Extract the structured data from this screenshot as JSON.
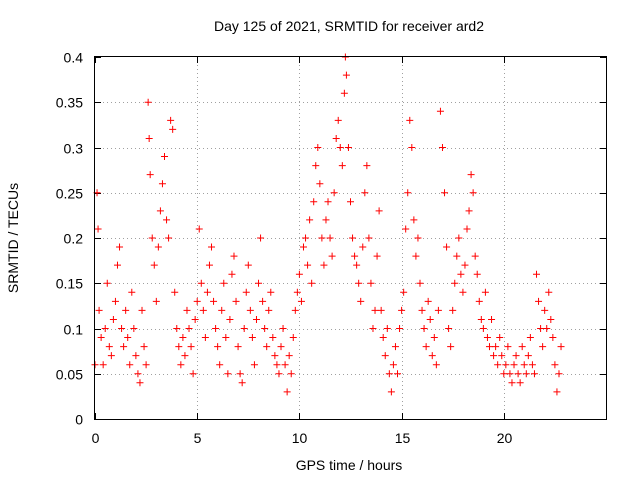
{
  "chart_data": {
    "type": "scatter",
    "title": "Day 125 of 2021, SRMTID for receiver ard2",
    "xlabel": "GPS time / hours",
    "ylabel": "SRMTID / TECUs",
    "xlim": [
      0,
      25
    ],
    "ylim": [
      0,
      0.4
    ],
    "xticks": [
      0,
      5,
      10,
      15,
      20
    ],
    "xtick_labels": [
      "0",
      "5",
      "10",
      "15",
      "20"
    ],
    "yticks": [
      0,
      0.05,
      0.1,
      0.15,
      0.2,
      0.25,
      0.3,
      0.35,
      0.4
    ],
    "ytick_labels": [
      "0",
      "0.05",
      "0.1",
      "0.15",
      "0.2",
      "0.25",
      "0.3",
      "0.35",
      "0.4"
    ],
    "grid": true,
    "marker": "+",
    "series": [
      {
        "name": "ard2",
        "color": "#ff0000",
        "points": [
          [
            0.0,
            0.06
          ],
          [
            0.1,
            0.25
          ],
          [
            0.15,
            0.21
          ],
          [
            0.2,
            0.12
          ],
          [
            0.3,
            0.09
          ],
          [
            0.4,
            0.06
          ],
          [
            0.5,
            0.1
          ],
          [
            0.6,
            0.15
          ],
          [
            0.7,
            0.08
          ],
          [
            0.8,
            0.07
          ],
          [
            0.9,
            0.11
          ],
          [
            1.0,
            0.13
          ],
          [
            1.1,
            0.17
          ],
          [
            1.2,
            0.19
          ],
          [
            1.3,
            0.1
          ],
          [
            1.4,
            0.08
          ],
          [
            1.5,
            0.12
          ],
          [
            1.6,
            0.09
          ],
          [
            1.7,
            0.06
          ],
          [
            1.8,
            0.14
          ],
          [
            1.9,
            0.1
          ],
          [
            2.0,
            0.07
          ],
          [
            2.1,
            0.05
          ],
          [
            2.2,
            0.04
          ],
          [
            2.3,
            0.12
          ],
          [
            2.4,
            0.08
          ],
          [
            2.5,
            0.06
          ],
          [
            2.6,
            0.35
          ],
          [
            2.65,
            0.31
          ],
          [
            2.7,
            0.27
          ],
          [
            2.8,
            0.2
          ],
          [
            2.9,
            0.17
          ],
          [
            3.0,
            0.13
          ],
          [
            3.1,
            0.19
          ],
          [
            3.2,
            0.23
          ],
          [
            3.3,
            0.26
          ],
          [
            3.4,
            0.29
          ],
          [
            3.5,
            0.22
          ],
          [
            3.6,
            0.2
          ],
          [
            3.7,
            0.33
          ],
          [
            3.8,
            0.32
          ],
          [
            3.9,
            0.14
          ],
          [
            4.0,
            0.1
          ],
          [
            4.1,
            0.08
          ],
          [
            4.2,
            0.06
          ],
          [
            4.3,
            0.09
          ],
          [
            4.4,
            0.07
          ],
          [
            4.5,
            0.12
          ],
          [
            4.6,
            0.1
          ],
          [
            4.7,
            0.08
          ],
          [
            4.8,
            0.05
          ],
          [
            4.9,
            0.11
          ],
          [
            5.0,
            0.13
          ],
          [
            5.1,
            0.21
          ],
          [
            5.2,
            0.15
          ],
          [
            5.3,
            0.12
          ],
          [
            5.4,
            0.09
          ],
          [
            5.5,
            0.14
          ],
          [
            5.6,
            0.17
          ],
          [
            5.7,
            0.19
          ],
          [
            5.8,
            0.13
          ],
          [
            5.9,
            0.1
          ],
          [
            6.0,
            0.08
          ],
          [
            6.1,
            0.06
          ],
          [
            6.2,
            0.12
          ],
          [
            6.3,
            0.15
          ],
          [
            6.4,
            0.09
          ],
          [
            6.5,
            0.05
          ],
          [
            6.6,
            0.11
          ],
          [
            6.7,
            0.16
          ],
          [
            6.8,
            0.18
          ],
          [
            6.9,
            0.13
          ],
          [
            7.0,
            0.08
          ],
          [
            7.1,
            0.05
          ],
          [
            7.2,
            0.04
          ],
          [
            7.3,
            0.1
          ],
          [
            7.4,
            0.14
          ],
          [
            7.5,
            0.17
          ],
          [
            7.6,
            0.12
          ],
          [
            7.7,
            0.09
          ],
          [
            7.8,
            0.06
          ],
          [
            7.9,
            0.11
          ],
          [
            8.0,
            0.15
          ],
          [
            8.1,
            0.2
          ],
          [
            8.2,
            0.13
          ],
          [
            8.3,
            0.1
          ],
          [
            8.4,
            0.08
          ],
          [
            8.5,
            0.12
          ],
          [
            8.6,
            0.14
          ],
          [
            8.7,
            0.09
          ],
          [
            8.8,
            0.07
          ],
          [
            8.9,
            0.06
          ],
          [
            9.0,
            0.05
          ],
          [
            9.1,
            0.08
          ],
          [
            9.2,
            0.1
          ],
          [
            9.3,
            0.06
          ],
          [
            9.4,
            0.03
          ],
          [
            9.5,
            0.07
          ],
          [
            9.6,
            0.05
          ],
          [
            9.7,
            0.09
          ],
          [
            9.8,
            0.12
          ],
          [
            9.9,
            0.14
          ],
          [
            10.0,
            0.16
          ],
          [
            10.1,
            0.13
          ],
          [
            10.2,
            0.19
          ],
          [
            10.3,
            0.2
          ],
          [
            10.4,
            0.17
          ],
          [
            10.5,
            0.22
          ],
          [
            10.6,
            0.15
          ],
          [
            10.7,
            0.24
          ],
          [
            10.8,
            0.28
          ],
          [
            10.9,
            0.3
          ],
          [
            11.0,
            0.26
          ],
          [
            11.1,
            0.2
          ],
          [
            11.2,
            0.17
          ],
          [
            11.3,
            0.22
          ],
          [
            11.4,
            0.24
          ],
          [
            11.5,
            0.2
          ],
          [
            11.6,
            0.18
          ],
          [
            11.7,
            0.25
          ],
          [
            11.8,
            0.31
          ],
          [
            11.9,
            0.33
          ],
          [
            12.0,
            0.3
          ],
          [
            12.1,
            0.28
          ],
          [
            12.2,
            0.36
          ],
          [
            12.25,
            0.4
          ],
          [
            12.3,
            0.38
          ],
          [
            12.4,
            0.3
          ],
          [
            12.5,
            0.24
          ],
          [
            12.6,
            0.2
          ],
          [
            12.7,
            0.18
          ],
          [
            12.8,
            0.17
          ],
          [
            12.9,
            0.15
          ],
          [
            13.0,
            0.13
          ],
          [
            13.1,
            0.19
          ],
          [
            13.2,
            0.25
          ],
          [
            13.3,
            0.28
          ],
          [
            13.4,
            0.2
          ],
          [
            13.5,
            0.15
          ],
          [
            13.6,
            0.1
          ],
          [
            13.7,
            0.12
          ],
          [
            13.8,
            0.18
          ],
          [
            13.9,
            0.23
          ],
          [
            14.0,
            0.12
          ],
          [
            14.1,
            0.09
          ],
          [
            14.2,
            0.07
          ],
          [
            14.3,
            0.1
          ],
          [
            14.4,
            0.05
          ],
          [
            14.5,
            0.03
          ],
          [
            14.6,
            0.06
          ],
          [
            14.7,
            0.08
          ],
          [
            14.8,
            0.05
          ],
          [
            14.9,
            0.1
          ],
          [
            15.0,
            0.12
          ],
          [
            15.1,
            0.14
          ],
          [
            15.2,
            0.21
          ],
          [
            15.3,
            0.25
          ],
          [
            15.4,
            0.33
          ],
          [
            15.5,
            0.3
          ],
          [
            15.6,
            0.22
          ],
          [
            15.7,
            0.18
          ],
          [
            15.8,
            0.2
          ],
          [
            15.9,
            0.15
          ],
          [
            16.0,
            0.12
          ],
          [
            16.1,
            0.1
          ],
          [
            16.2,
            0.08
          ],
          [
            16.3,
            0.13
          ],
          [
            16.4,
            0.11
          ],
          [
            16.5,
            0.07
          ],
          [
            16.6,
            0.09
          ],
          [
            16.7,
            0.06
          ],
          [
            16.8,
            0.12
          ],
          [
            16.9,
            0.34
          ],
          [
            17.0,
            0.3
          ],
          [
            17.1,
            0.25
          ],
          [
            17.2,
            0.19
          ],
          [
            17.3,
            0.1
          ],
          [
            17.4,
            0.08
          ],
          [
            17.5,
            0.12
          ],
          [
            17.6,
            0.15
          ],
          [
            17.7,
            0.18
          ],
          [
            17.8,
            0.2
          ],
          [
            17.9,
            0.16
          ],
          [
            18.0,
            0.14
          ],
          [
            18.1,
            0.17
          ],
          [
            18.2,
            0.21
          ],
          [
            18.3,
            0.23
          ],
          [
            18.4,
            0.27
          ],
          [
            18.5,
            0.25
          ],
          [
            18.6,
            0.18
          ],
          [
            18.7,
            0.16
          ],
          [
            18.8,
            0.13
          ],
          [
            18.9,
            0.11
          ],
          [
            19.0,
            0.1
          ],
          [
            19.1,
            0.14
          ],
          [
            19.2,
            0.09
          ],
          [
            19.3,
            0.08
          ],
          [
            19.4,
            0.11
          ],
          [
            19.5,
            0.07
          ],
          [
            19.6,
            0.08
          ],
          [
            19.7,
            0.06
          ],
          [
            19.8,
            0.09
          ],
          [
            19.9,
            0.07
          ],
          [
            20.0,
            0.05
          ],
          [
            20.1,
            0.06
          ],
          [
            20.2,
            0.08
          ],
          [
            20.3,
            0.05
          ],
          [
            20.4,
            0.04
          ],
          [
            20.5,
            0.06
          ],
          [
            20.6,
            0.07
          ],
          [
            20.7,
            0.05
          ],
          [
            20.8,
            0.04
          ],
          [
            20.9,
            0.08
          ],
          [
            21.0,
            0.06
          ],
          [
            21.1,
            0.05
          ],
          [
            21.2,
            0.07
          ],
          [
            21.3,
            0.09
          ],
          [
            21.4,
            0.06
          ],
          [
            21.5,
            0.05
          ],
          [
            21.6,
            0.16
          ],
          [
            21.7,
            0.13
          ],
          [
            21.8,
            0.1
          ],
          [
            21.9,
            0.08
          ],
          [
            22.0,
            0.12
          ],
          [
            22.1,
            0.1
          ],
          [
            22.2,
            0.14
          ],
          [
            22.3,
            0.11
          ],
          [
            22.4,
            0.09
          ],
          [
            22.5,
            0.06
          ],
          [
            22.6,
            0.03
          ],
          [
            22.7,
            0.05
          ],
          [
            22.8,
            0.08
          ]
        ]
      }
    ]
  }
}
